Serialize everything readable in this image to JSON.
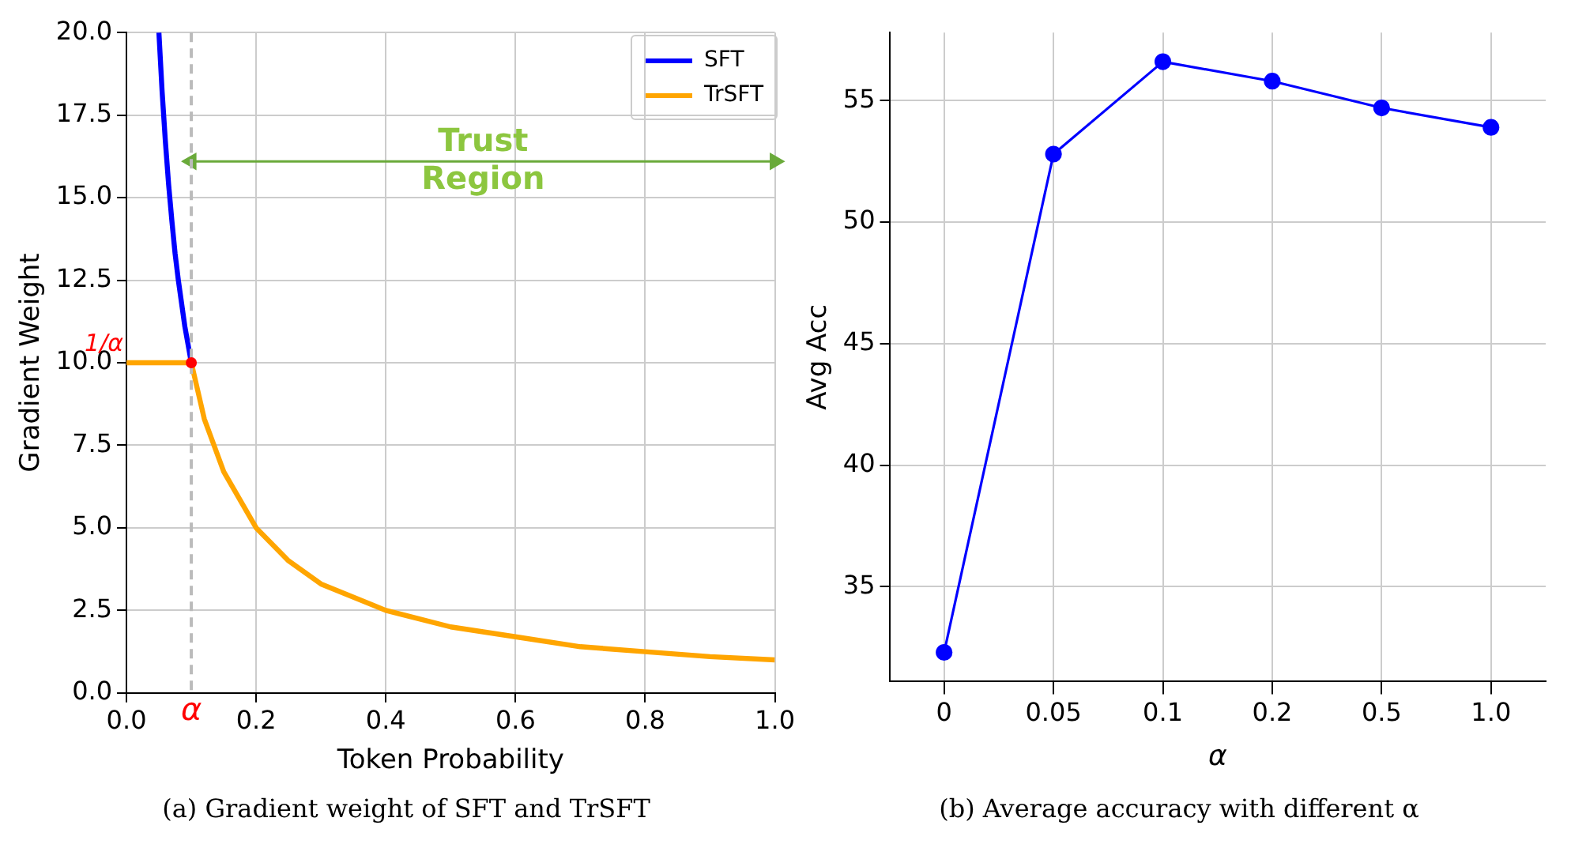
{
  "chart_data": [
    {
      "type": "line",
      "title": "(a) Gradient weight of SFT and TrSFT",
      "xlabel": "Token Probability",
      "ylabel": "Gradient Weight",
      "series": [
        {
          "name": "SFT",
          "color": "#0000ff",
          "x": [
            0.05,
            0.055,
            0.06,
            0.065,
            0.07,
            0.075,
            0.08,
            0.09,
            0.1
          ],
          "values": [
            20,
            18.2,
            16.7,
            15.4,
            14.3,
            13.3,
            12.5,
            11.1,
            10
          ]
        },
        {
          "name": "TrSFT",
          "color": "#ffa500",
          "x": [
            0,
            0.1,
            0.12,
            0.15,
            0.2,
            0.25,
            0.3,
            0.4,
            0.5,
            0.6,
            0.7,
            0.8,
            0.9,
            1.0
          ],
          "values": [
            10,
            10,
            8.3,
            6.7,
            5,
            4,
            3.3,
            2.5,
            2,
            1.7,
            1.4,
            1.25,
            1.1,
            1
          ]
        },
        {
          "color": "#6aaa3a",
          "x": [
            0.1,
            1.0
          ],
          "values": [
            16.1,
            16.1
          ],
          "marker": "triangle"
        }
      ],
      "xlim": [
        0,
        1
      ],
      "xticks": [
        {
          "value": 0,
          "label": "0.0"
        },
        0.2,
        0.4,
        0.6,
        0.8,
        {
          "value": 1,
          "label": "1.0"
        }
      ],
      "ylim": [
        0,
        20
      ],
      "yticks": [
        {
          "value": 0,
          "label": "0.0"
        },
        2.5,
        {
          "value": 5,
          "label": "5.0"
        },
        7.5,
        {
          "value": 10,
          "label": "10.0"
        },
        12.5,
        {
          "value": 15,
          "label": "15.0"
        },
        17.5,
        {
          "value": 20,
          "label": "20.0"
        }
      ],
      "ref_lines": [
        {
          "axis": "x",
          "value": 0.1,
          "label": "α",
          "color": "#bbbbbb",
          "line_style": "dashed"
        }
      ],
      "annotations": [
        {
          "text": "1/α",
          "x": 0.1,
          "y": 10
        },
        {
          "text": "Trust Region",
          "x": 0.55,
          "y": 16.1
        }
      ],
      "grid": true,
      "legend": "top right",
      "marker": "none"
    },
    {
      "type": "line",
      "title": "(b) Average accuracy with different  α",
      "xlabel": "α",
      "ylabel": "Avg Acc",
      "categories": [
        "0",
        "0.05",
        "0.1",
        "0.2",
        "0.5",
        "1.0"
      ],
      "series": [
        {
          "color": "#0000ff",
          "values": [
            32.3,
            52.8,
            56.6,
            55.8,
            54.7,
            53.9
          ]
        }
      ],
      "ylim": [
        31.1,
        57.8
      ],
      "yticks": [
        35,
        40,
        45,
        50,
        55
      ],
      "grid": true,
      "legend": false,
      "marker": "circle"
    }
  ]
}
